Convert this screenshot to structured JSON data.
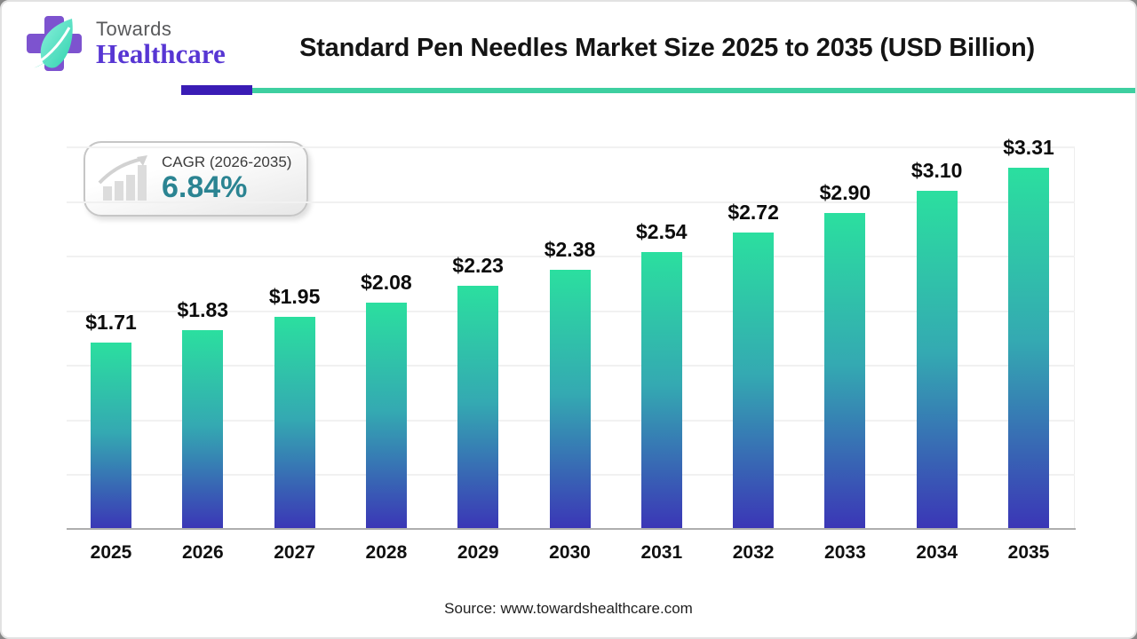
{
  "header": {
    "logo": {
      "line1": "Towards",
      "line2": "Healthcare"
    },
    "title": "Standard Pen Needles Market Size 2025 to 2035 (USD Billion)",
    "underline_purple": "#3A1CB5",
    "underline_teal": "#3ECFA0"
  },
  "cagr": {
    "label": "CAGR (2026-2035)",
    "value": "6.84%",
    "value_color": "#2B8492"
  },
  "chart_data": {
    "type": "bar",
    "title": "Standard Pen Needles Market Size 2025 to 2035 (USD Billion)",
    "unit": "USD Billion",
    "categories": [
      "2025",
      "2026",
      "2027",
      "2028",
      "2029",
      "2030",
      "2031",
      "2032",
      "2033",
      "2034",
      "2035"
    ],
    "values": [
      1.71,
      1.83,
      1.95,
      2.08,
      2.23,
      2.38,
      2.54,
      2.72,
      2.9,
      3.1,
      3.31
    ],
    "labels": [
      "$1.71",
      "$1.83",
      "$1.95",
      "$2.08",
      "$2.23",
      "$2.38",
      "$2.54",
      "$2.72",
      "$2.90",
      "$3.10",
      "$3.31"
    ],
    "xlabel": "",
    "ylabel": "",
    "ylim": [
      0,
      3.5
    ],
    "gridline_step": 0.5,
    "grid": true,
    "legend": false,
    "bar_gradient": [
      "#2BDF9F",
      "#34A9B2",
      "#3B35B6"
    ]
  },
  "footer": {
    "source": "Source: www.towardshealthcare.com"
  }
}
